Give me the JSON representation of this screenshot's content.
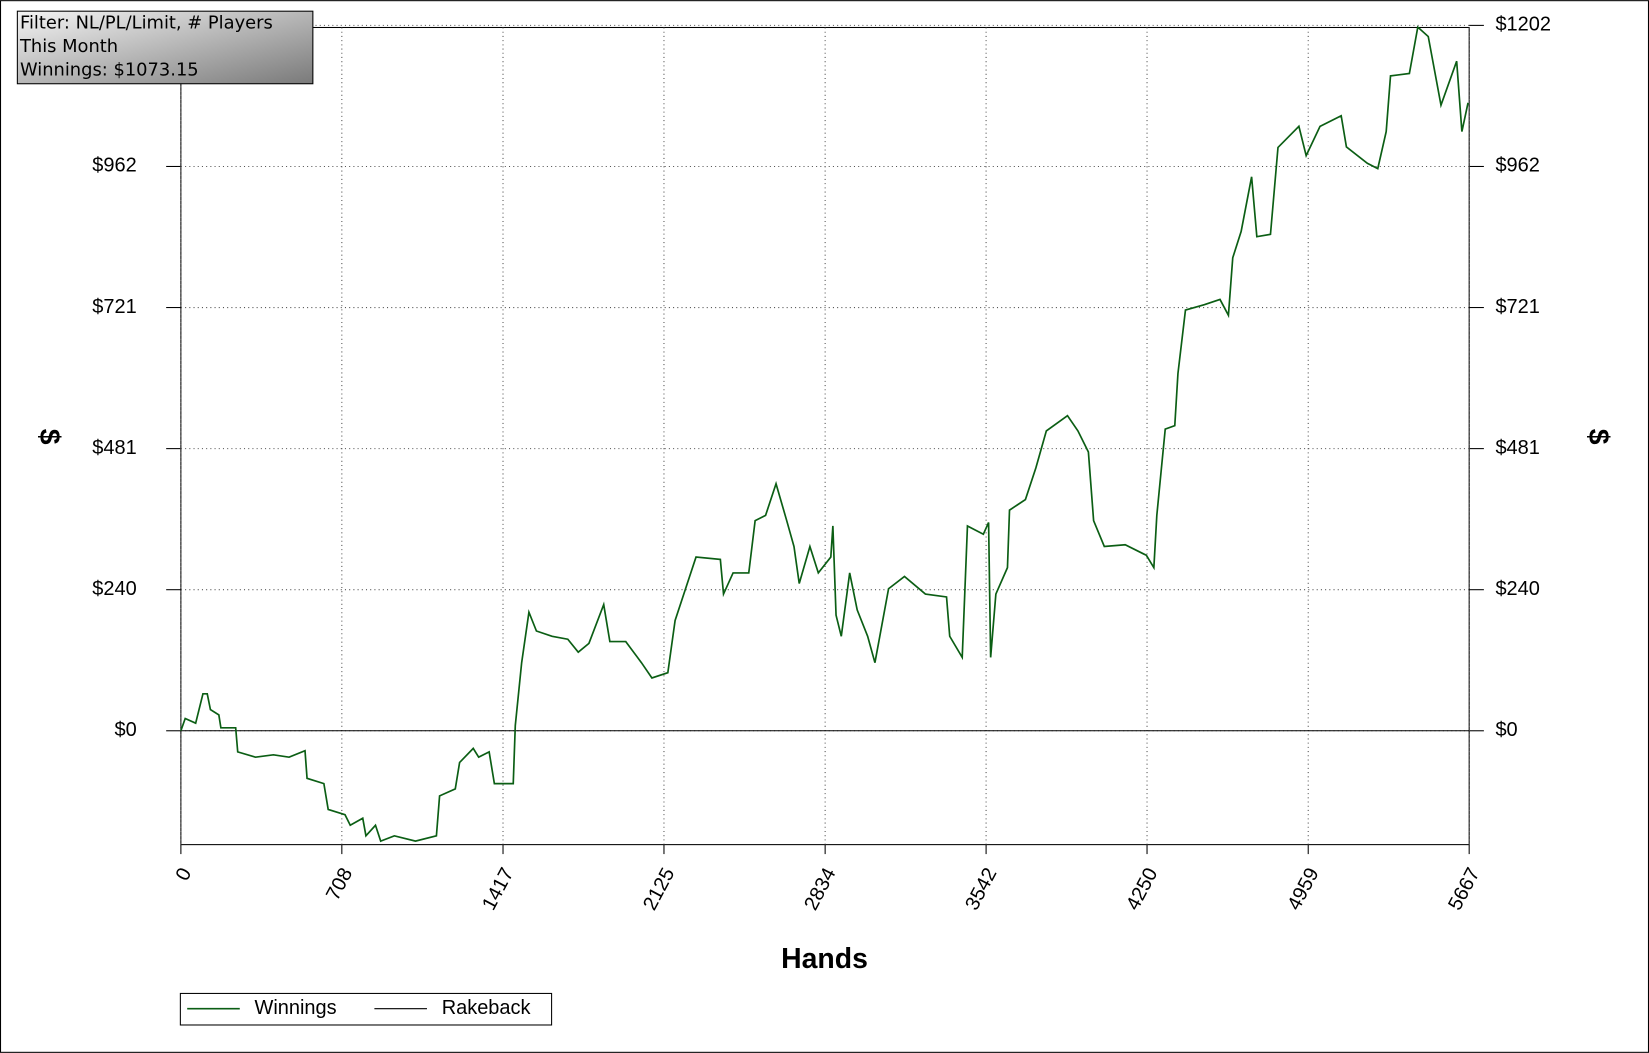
{
  "chart_data": {
    "type": "line",
    "annotations": [
      "Filter: NL/PL/Limit, # Players",
      "This Month",
      "Winnings: $1073.15"
    ],
    "x_label": "Hands",
    "y_label": "$",
    "y2_label": "$",
    "xlim": [
      0,
      5667
    ],
    "xticks": [
      0,
      708,
      1417,
      2125,
      2834,
      3542,
      4250,
      4959,
      5667
    ],
    "ylim": [
      -194,
      1202
    ],
    "yticks": [
      {
        "value": 0,
        "label": "$0"
      },
      {
        "value": 240.4,
        "label": "$240"
      },
      {
        "value": 480.8,
        "label": "$481"
      },
      {
        "value": 721.2,
        "label": "$721"
      },
      {
        "value": 961.6,
        "label": "$962"
      },
      {
        "value": 1202,
        "label": "$1202"
      }
    ],
    "y2lim": [
      -194,
      1202
    ],
    "y2ticks": [
      {
        "value": 0,
        "label": "$0"
      },
      {
        "value": 240.4,
        "label": "$240"
      },
      {
        "value": 480.8,
        "label": "$481"
      },
      {
        "value": 721.2,
        "label": "$721"
      },
      {
        "value": 961.6,
        "label": "$962"
      },
      {
        "value": 1202,
        "label": "$1202"
      }
    ],
    "grid": true,
    "legend": "bottom-left",
    "series": [
      {
        "name": "Winnings",
        "color": "#0b5e14",
        "x": [
          0,
          19,
          65,
          97,
          116,
          130,
          167,
          176,
          241,
          250,
          328,
          407,
          476,
          546,
          555,
          629,
          648,
          722,
          745,
          800,
          814,
          856,
          879,
          939,
          1032,
          1124,
          1138,
          1207,
          1226,
          1286,
          1310,
          1356,
          1379,
          1462,
          1471,
          1499,
          1531,
          1564,
          1633,
          1702,
          1748,
          1795,
          1860,
          1887,
          1957,
          2026,
          2072,
          2142,
          2174,
          2220,
          2266,
          2373,
          2387,
          2429,
          2498,
          2526,
          2572,
          2618,
          2665,
          2697,
          2720,
          2767,
          2804,
          2859,
          2868,
          2882,
          2905,
          2942,
          2975,
          3021,
          3053,
          3113,
          3183,
          3275,
          3368,
          3382,
          3437,
          3460,
          3530,
          3553,
          3562,
          3585,
          3636,
          3645,
          3715,
          3761,
          3807,
          3900,
          3946,
          3992,
          4015,
          4062,
          4154,
          4247,
          4280,
          4293,
          4330,
          4372,
          4386,
          4419,
          4502,
          4571,
          4608,
          4627,
          4664,
          4710,
          4733,
          4793,
          4826,
          4918,
          4950,
          5011,
          5104,
          5127,
          5219,
          5265,
          5302,
          5321,
          5404,
          5441,
          5487,
          5543,
          5612,
          5635,
          5662
        ],
        "values": [
          0,
          21,
          13,
          63,
          63,
          36,
          27,
          5,
          5,
          -36,
          -45,
          -41,
          -45,
          -34,
          -81,
          -90,
          -134,
          -143,
          -161,
          -149,
          -179,
          -161,
          -188,
          -179,
          -188,
          -179,
          -111,
          -99,
          -54,
          -30,
          -45,
          -36,
          -90,
          -90,
          9,
          116,
          202,
          170,
          161,
          156,
          134,
          149,
          215,
          152,
          152,
          116,
          90,
          99,
          188,
          242,
          296,
          292,
          233,
          269,
          269,
          358,
          367,
          421,
          358,
          314,
          251,
          314,
          269,
          296,
          349,
          197,
          161,
          269,
          206,
          161,
          116,
          242,
          263,
          233,
          228,
          161,
          125,
          349,
          335,
          355,
          125,
          233,
          278,
          376,
          394,
          448,
          511,
          537,
          511,
          475,
          358,
          314,
          317,
          299,
          278,
          367,
          514,
          520,
          609,
          717,
          726,
          735,
          708,
          806,
          851,
          944,
          842,
          846,
          994,
          1030,
          980,
          1030,
          1048,
          995,
          967,
          958,
          1021,
          1116,
          1120,
          1199,
          1183,
          1066,
          1141,
          1021,
          1070
        ]
      },
      {
        "name": "Rakeback",
        "color": "#000000",
        "x": [
          0,
          5667
        ],
        "values": [
          0,
          0
        ]
      }
    ]
  }
}
